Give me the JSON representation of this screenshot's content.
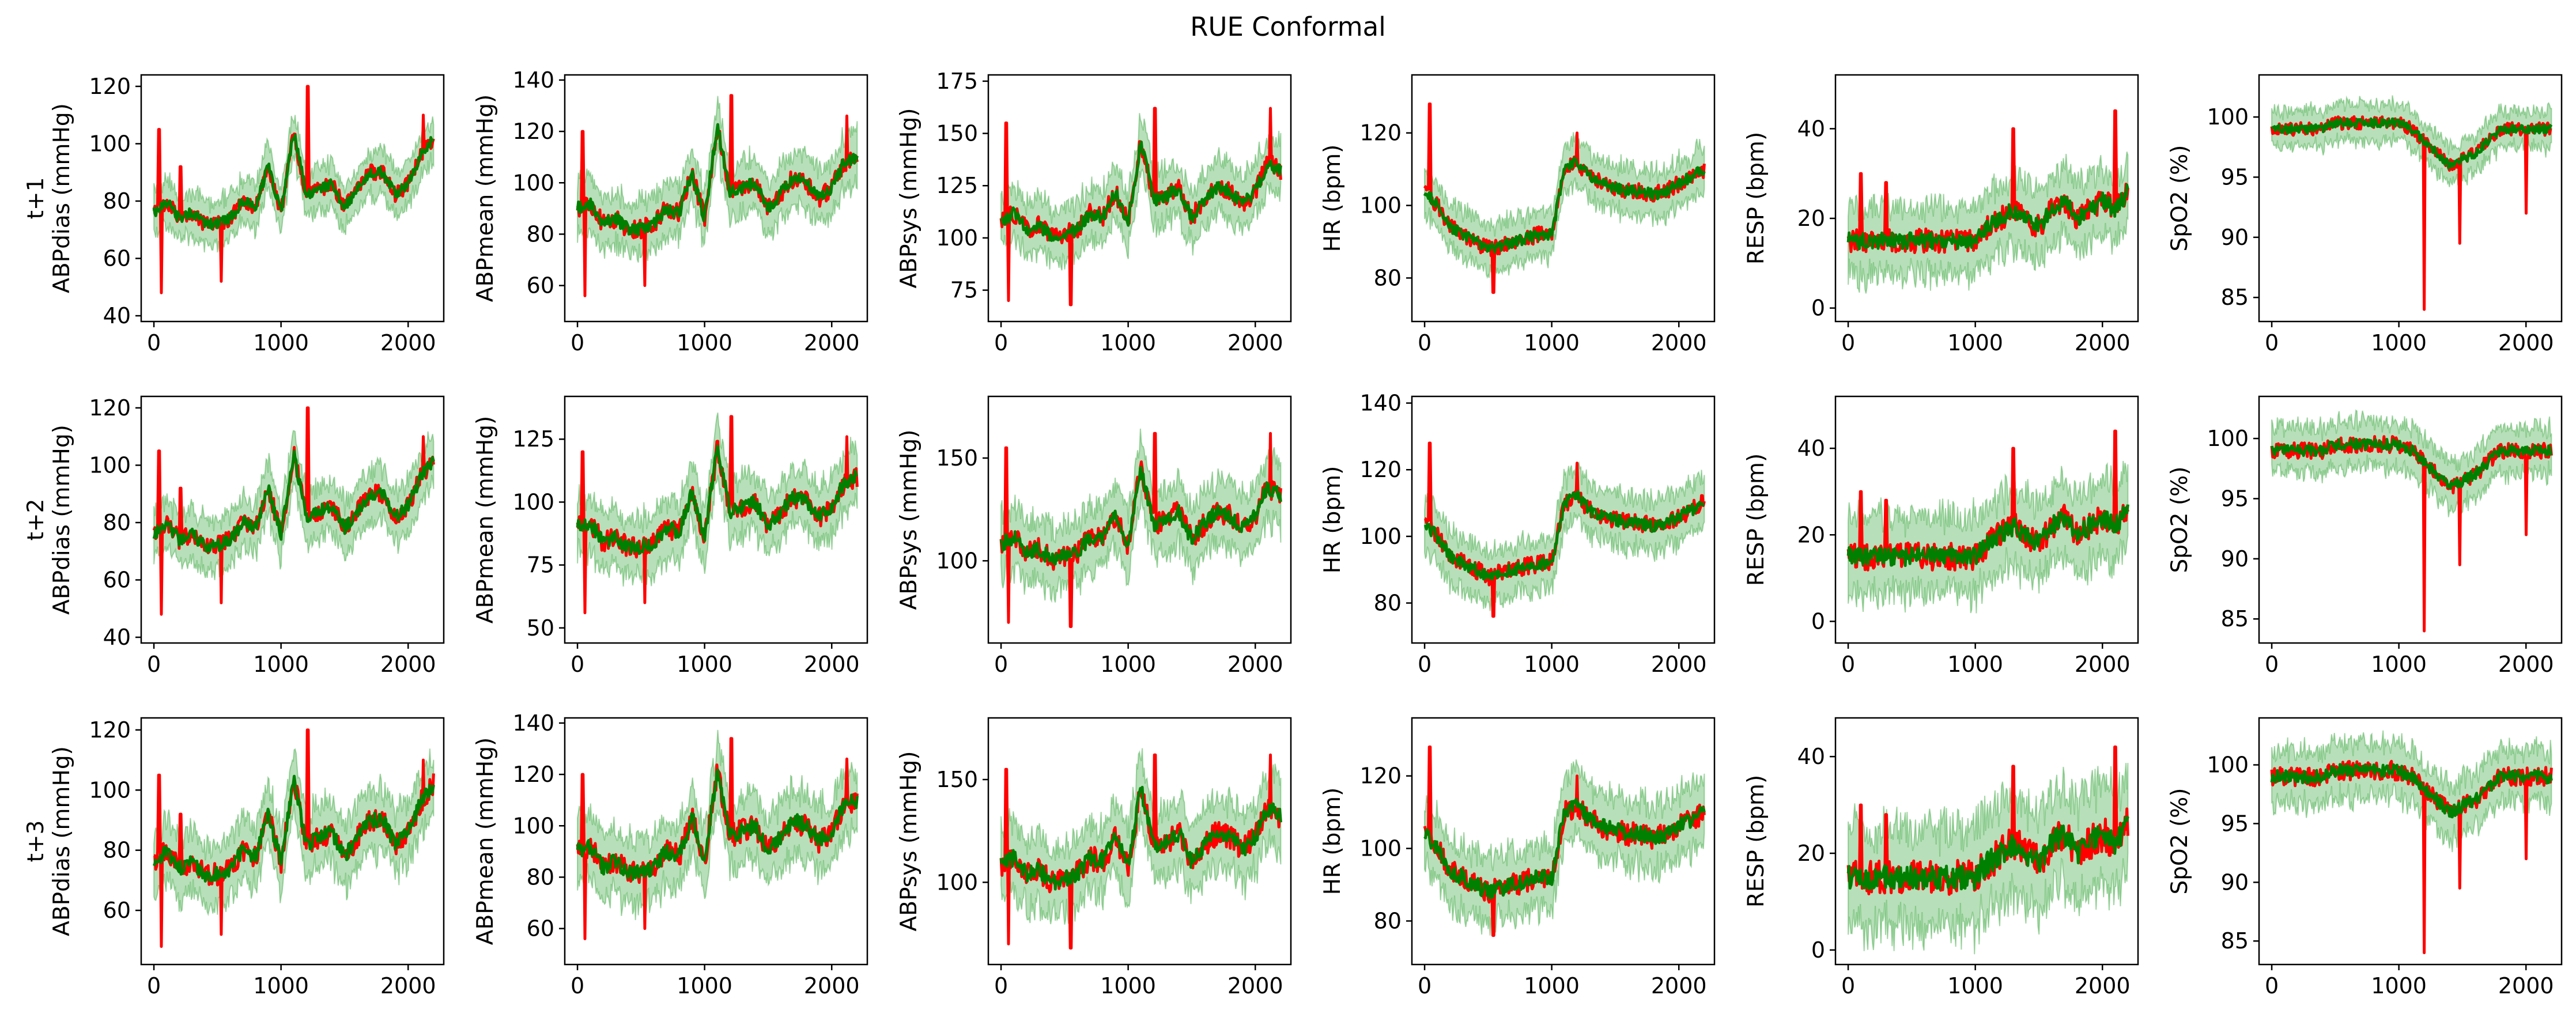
{
  "title": "RUE Conformal",
  "colors": {
    "truth": "#ff0000",
    "prediction": "#008000",
    "interval": "#4caf50"
  },
  "x_ticks": [
    0,
    1000,
    2000
  ],
  "x_range": [
    -100,
    2280
  ],
  "row_labels": [
    "t+1",
    "t+2",
    "t+3"
  ],
  "chart_data": [
    {
      "type": "line",
      "row": 0,
      "col": 0,
      "ylabel": "ABPdias (mmHg)",
      "ylim": [
        38,
        124
      ],
      "yticks": [
        40,
        60,
        80,
        100,
        120
      ],
      "base": [
        76,
        80,
        74,
        76,
        72,
        72,
        74,
        80,
        78,
        92,
        76,
        104,
        82,
        84,
        86,
        78,
        84,
        90,
        90,
        82,
        86,
        96,
        102
      ],
      "width": 6,
      "spikes": [
        [
          40,
          105
        ],
        [
          60,
          48
        ],
        [
          210,
          92
        ],
        [
          530,
          52
        ],
        [
          1210,
          120
        ],
        [
          2120,
          110
        ]
      ],
      "series": [
        "truth",
        "prediction"
      ]
    },
    {
      "type": "line",
      "row": 0,
      "col": 1,
      "ylabel": "ABPmean (mmHg)",
      "ylim": [
        46,
        142
      ],
      "yticks": [
        60,
        80,
        100,
        120,
        140
      ],
      "base": [
        90,
        92,
        84,
        86,
        82,
        82,
        84,
        90,
        88,
        104,
        86,
        122,
        96,
        98,
        100,
        90,
        96,
        102,
        100,
        94,
        98,
        108,
        110
      ],
      "width": 8,
      "spikes": [
        [
          40,
          120
        ],
        [
          60,
          56
        ],
        [
          530,
          60
        ],
        [
          1210,
          134
        ],
        [
          2120,
          126
        ]
      ],
      "series": [
        "truth",
        "prediction"
      ]
    },
    {
      "type": "line",
      "row": 0,
      "col": 2,
      "ylabel": "ABPsys (mmHg)",
      "ylim": [
        60,
        178
      ],
      "yticks": [
        75,
        100,
        125,
        150,
        175
      ],
      "base": [
        108,
        112,
        104,
        106,
        100,
        102,
        104,
        112,
        110,
        122,
        108,
        146,
        118,
        120,
        124,
        110,
        118,
        124,
        122,
        116,
        122,
        136,
        132
      ],
      "width": 10,
      "spikes": [
        [
          40,
          155
        ],
        [
          60,
          70
        ],
        [
          550,
          68
        ],
        [
          1210,
          162
        ],
        [
          2120,
          162
        ]
      ],
      "series": [
        "truth",
        "prediction"
      ]
    },
    {
      "type": "line",
      "row": 0,
      "col": 3,
      "ylabel": "HR (bpm)",
      "ylim": [
        68,
        136
      ],
      "yticks": [
        80,
        100,
        120
      ],
      "base": [
        104,
        100,
        94,
        92,
        90,
        88,
        89,
        90,
        91,
        92,
        92,
        110,
        112,
        108,
        106,
        105,
        104,
        104,
        103,
        104,
        106,
        108,
        110
      ],
      "width": 5,
      "spikes": [
        [
          40,
          128
        ],
        [
          540,
          76
        ],
        [
          1200,
          120
        ]
      ],
      "series": [
        "truth",
        "prediction"
      ]
    },
    {
      "type": "line",
      "row": 0,
      "col": 4,
      "ylabel": "RESP (bpm)",
      "ylim": [
        -3,
        52
      ],
      "yticks": [
        0,
        20,
        40
      ],
      "base": [
        15,
        15,
        15,
        15,
        15,
        15,
        15,
        15,
        15,
        15,
        15,
        18,
        20,
        22,
        20,
        18,
        22,
        24,
        20,
        22,
        24,
        22,
        26
      ],
      "width": 6,
      "spikes": [
        [
          100,
          30
        ],
        [
          300,
          28
        ],
        [
          1300,
          40
        ],
        [
          2100,
          44
        ]
      ],
      "series": [
        "truth",
        "prediction"
      ]
    },
    {
      "type": "line",
      "row": 0,
      "col": 5,
      "ylabel": "SpO2 (%)",
      "ylim": [
        83,
        103.5
      ],
      "yticks": [
        85,
        90,
        95,
        100
      ],
      "base": [
        99,
        99,
        99,
        99,
        99,
        99.5,
        99.5,
        99.5,
        99.5,
        99.5,
        99.5,
        99,
        98,
        97,
        96,
        96.5,
        97,
        98,
        99,
        99,
        99,
        99,
        99
      ],
      "width": 1.2,
      "spikes": [
        [
          1200,
          84
        ],
        [
          1480,
          89.5
        ],
        [
          2000,
          92
        ]
      ],
      "series": [
        "truth",
        "prediction"
      ]
    },
    {
      "type": "line",
      "row": 1,
      "col": 0,
      "ylabel": "ABPdias (mmHg)",
      "ylim": [
        38,
        124
      ],
      "yticks": [
        40,
        60,
        80,
        100,
        120
      ],
      "base": [
        76,
        80,
        74,
        76,
        72,
        72,
        74,
        80,
        78,
        92,
        76,
        104,
        82,
        84,
        86,
        78,
        84,
        90,
        90,
        82,
        86,
        96,
        102
      ],
      "width": 7,
      "spikes": [
        [
          40,
          105
        ],
        [
          60,
          48
        ],
        [
          210,
          92
        ],
        [
          530,
          52
        ],
        [
          1210,
          120
        ],
        [
          2120,
          110
        ]
      ],
      "series": [
        "truth",
        "prediction"
      ]
    },
    {
      "type": "line",
      "row": 1,
      "col": 1,
      "ylabel": "ABPmean (mmHg)",
      "ylim": [
        44,
        142
      ],
      "yticks": [
        50,
        75,
        100,
        125
      ],
      "base": [
        90,
        92,
        84,
        86,
        82,
        82,
        84,
        90,
        88,
        104,
        86,
        122,
        96,
        98,
        100,
        90,
        96,
        102,
        100,
        94,
        98,
        108,
        110
      ],
      "width": 9,
      "spikes": [
        [
          40,
          120
        ],
        [
          60,
          56
        ],
        [
          530,
          60
        ],
        [
          1210,
          134
        ],
        [
          2120,
          126
        ]
      ],
      "series": [
        "truth",
        "prediction"
      ]
    },
    {
      "type": "line",
      "row": 1,
      "col": 2,
      "ylabel": "ABPsys (mmHg)",
      "ylim": [
        60,
        180
      ],
      "yticks": [
        100,
        150
      ],
      "base": [
        108,
        112,
        104,
        106,
        100,
        102,
        104,
        112,
        110,
        122,
        108,
        146,
        118,
        120,
        124,
        110,
        118,
        124,
        122,
        116,
        122,
        136,
        132
      ],
      "width": 12,
      "spikes": [
        [
          40,
          155
        ],
        [
          60,
          70
        ],
        [
          550,
          68
        ],
        [
          1210,
          162
        ],
        [
          2120,
          162
        ]
      ],
      "series": [
        "truth",
        "prediction"
      ]
    },
    {
      "type": "line",
      "row": 1,
      "col": 3,
      "ylabel": "HR (bpm)",
      "ylim": [
        68,
        142
      ],
      "yticks": [
        80,
        100,
        120,
        140
      ],
      "base": [
        104,
        100,
        94,
        92,
        90,
        88,
        89,
        90,
        91,
        92,
        92,
        110,
        112,
        108,
        106,
        105,
        104,
        104,
        103,
        104,
        106,
        108,
        110
      ],
      "width": 6,
      "spikes": [
        [
          40,
          128
        ],
        [
          540,
          76
        ],
        [
          1200,
          122
        ]
      ],
      "series": [
        "truth",
        "prediction"
      ]
    },
    {
      "type": "line",
      "row": 1,
      "col": 4,
      "ylabel": "RESP (bpm)",
      "ylim": [
        -5,
        52
      ],
      "yticks": [
        0,
        20,
        40
      ],
      "base": [
        15,
        15,
        15,
        15,
        15,
        15,
        15,
        15,
        15,
        15,
        15,
        18,
        20,
        22,
        20,
        18,
        22,
        24,
        20,
        22,
        24,
        22,
        26
      ],
      "width": 7,
      "spikes": [
        [
          100,
          30
        ],
        [
          300,
          28
        ],
        [
          1300,
          40
        ],
        [
          2100,
          44
        ]
      ],
      "series": [
        "truth",
        "prediction"
      ]
    },
    {
      "type": "line",
      "row": 1,
      "col": 5,
      "ylabel": "SpO2 (%)",
      "ylim": [
        83,
        103.5
      ],
      "yticks": [
        85,
        90,
        95,
        100
      ],
      "base": [
        99,
        99,
        99,
        99,
        99,
        99.5,
        99.5,
        99.5,
        99.5,
        99.5,
        99.5,
        99,
        98,
        97,
        96,
        96.5,
        97,
        98,
        99,
        99,
        99,
        99,
        99
      ],
      "width": 1.5,
      "spikes": [
        [
          1200,
          84
        ],
        [
          1480,
          89.5
        ],
        [
          2000,
          92
        ]
      ],
      "series": [
        "truth",
        "prediction"
      ]
    },
    {
      "type": "line",
      "row": 2,
      "col": 0,
      "ylabel": "ABPdias (mmHg)",
      "ylim": [
        42,
        124
      ],
      "yticks": [
        60,
        80,
        100,
        120
      ],
      "base": [
        76,
        80,
        74,
        76,
        72,
        72,
        74,
        80,
        78,
        92,
        76,
        104,
        82,
        84,
        86,
        78,
        84,
        90,
        90,
        82,
        86,
        96,
        102
      ],
      "width": 8,
      "spikes": [
        [
          40,
          105
        ],
        [
          60,
          48
        ],
        [
          210,
          92
        ],
        [
          530,
          52
        ],
        [
          1210,
          120
        ],
        [
          2120,
          110
        ]
      ],
      "series": [
        "truth",
        "prediction"
      ]
    },
    {
      "type": "line",
      "row": 2,
      "col": 1,
      "ylabel": "ABPmean (mmHg)",
      "ylim": [
        46,
        142
      ],
      "yticks": [
        60,
        80,
        100,
        120,
        140
      ],
      "base": [
        90,
        92,
        84,
        86,
        82,
        82,
        84,
        90,
        88,
        104,
        86,
        122,
        96,
        98,
        100,
        90,
        96,
        102,
        100,
        94,
        98,
        108,
        110
      ],
      "width": 10,
      "spikes": [
        [
          40,
          120
        ],
        [
          60,
          56
        ],
        [
          530,
          60
        ],
        [
          1210,
          134
        ],
        [
          2120,
          126
        ]
      ],
      "series": [
        "truth",
        "prediction"
      ]
    },
    {
      "type": "line",
      "row": 2,
      "col": 2,
      "ylabel": "ABPsys (mmHg)",
      "ylim": [
        60,
        180
      ],
      "yticks": [
        100,
        150
      ],
      "base": [
        108,
        112,
        104,
        106,
        100,
        102,
        104,
        112,
        110,
        122,
        108,
        146,
        118,
        120,
        124,
        110,
        118,
        124,
        122,
        116,
        122,
        136,
        132
      ],
      "width": 13,
      "spikes": [
        [
          40,
          155
        ],
        [
          60,
          70
        ],
        [
          550,
          68
        ],
        [
          1210,
          162
        ],
        [
          2120,
          162
        ]
      ],
      "series": [
        "truth",
        "prediction"
      ]
    },
    {
      "type": "line",
      "row": 2,
      "col": 3,
      "ylabel": "HR (bpm)",
      "ylim": [
        68,
        136
      ],
      "yticks": [
        80,
        100,
        120
      ],
      "base": [
        104,
        100,
        94,
        92,
        90,
        88,
        89,
        90,
        91,
        92,
        92,
        110,
        112,
        108,
        106,
        105,
        104,
        104,
        103,
        104,
        106,
        108,
        110
      ],
      "width": 7,
      "spikes": [
        [
          40,
          128
        ],
        [
          540,
          76
        ],
        [
          1200,
          120
        ]
      ],
      "series": [
        "truth",
        "prediction"
      ]
    },
    {
      "type": "line",
      "row": 2,
      "col": 4,
      "ylabel": "RESP (bpm)",
      "ylim": [
        -3,
        48
      ],
      "yticks": [
        0,
        20,
        40
      ],
      "base": [
        15,
        15,
        15,
        15,
        15,
        15,
        15,
        15,
        15,
        15,
        15,
        18,
        20,
        22,
        20,
        18,
        22,
        24,
        20,
        22,
        24,
        22,
        26
      ],
      "width": 8,
      "spikes": [
        [
          100,
          30
        ],
        [
          300,
          28
        ],
        [
          1300,
          38
        ],
        [
          2100,
          42
        ]
      ],
      "series": [
        "truth",
        "prediction"
      ]
    },
    {
      "type": "line",
      "row": 2,
      "col": 5,
      "ylabel": "SpO2 (%)",
      "ylim": [
        83,
        104
      ],
      "yticks": [
        85,
        90,
        95,
        100
      ],
      "base": [
        99,
        99,
        99,
        99,
        99,
        99.5,
        99.5,
        99.5,
        99.5,
        99.5,
        99.5,
        99,
        98,
        97,
        96,
        96.5,
        97,
        98,
        99,
        99,
        99,
        99,
        99
      ],
      "width": 1.8,
      "spikes": [
        [
          1200,
          84
        ],
        [
          1480,
          89.5
        ],
        [
          2000,
          92
        ]
      ],
      "series": [
        "truth",
        "prediction"
      ]
    }
  ]
}
